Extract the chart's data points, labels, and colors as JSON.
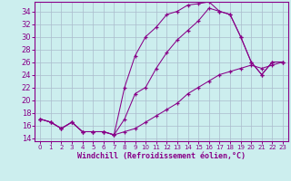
{
  "xlabel": "Windchill (Refroidissement éolien,°C)",
  "bg_color": "#cceeee",
  "line_color": "#880088",
  "grid_color": "#aabbcc",
  "xlim": [
    -0.5,
    23.5
  ],
  "ylim": [
    13.5,
    35.5
  ],
  "xticks": [
    0,
    1,
    2,
    3,
    4,
    5,
    6,
    7,
    8,
    9,
    10,
    11,
    12,
    13,
    14,
    15,
    16,
    17,
    18,
    19,
    20,
    21,
    22,
    23
  ],
  "yticks": [
    14,
    16,
    18,
    20,
    22,
    24,
    26,
    28,
    30,
    32,
    34
  ],
  "line1_x": [
    0,
    1,
    2,
    3,
    4,
    5,
    6,
    7,
    8,
    9,
    10,
    11,
    12,
    13,
    14,
    15,
    16,
    17,
    18,
    19,
    20,
    21,
    22,
    23
  ],
  "line1_y": [
    17,
    16.5,
    15.5,
    16.5,
    15,
    15,
    15,
    14.5,
    22,
    27,
    30,
    31.5,
    33.5,
    34,
    35,
    35.2,
    35.5,
    34,
    33.5,
    30,
    26,
    24,
    26,
    26
  ],
  "line2_x": [
    0,
    1,
    2,
    3,
    4,
    5,
    6,
    7,
    8,
    9,
    10,
    11,
    12,
    13,
    14,
    15,
    16,
    17,
    18,
    19,
    20,
    21,
    22,
    23
  ],
  "line2_y": [
    17,
    16.5,
    15.5,
    16.5,
    15,
    15,
    15,
    14.5,
    17,
    21,
    22,
    25,
    27.5,
    29.5,
    31,
    32.5,
    34.5,
    34,
    33.5,
    30,
    26,
    24,
    26,
    26
  ],
  "line3_x": [
    0,
    1,
    2,
    3,
    4,
    5,
    6,
    7,
    8,
    9,
    10,
    11,
    12,
    13,
    14,
    15,
    16,
    17,
    18,
    19,
    20,
    21,
    22,
    23
  ],
  "line3_y": [
    17,
    16.5,
    15.5,
    16.5,
    15,
    15,
    15,
    14.5,
    15,
    15.5,
    16.5,
    17.5,
    18.5,
    19.5,
    21,
    22,
    23,
    24,
    24.5,
    25,
    25.5,
    25,
    25.5,
    26
  ],
  "xlabel_fontsize": 6,
  "tick_fontsize": 5,
  "label_color": "#880088"
}
